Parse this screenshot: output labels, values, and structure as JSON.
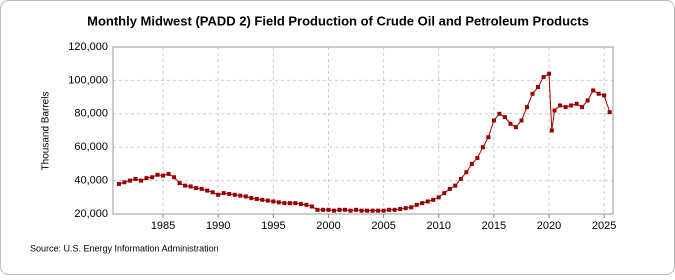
{
  "chart_data": {
    "type": "line",
    "title": "Monthly Midwest (PADD 2) Field Production of Crude Oil and Petroleum Products",
    "y_label": "Thousand Barrels",
    "source": "Source: U.S. Energy Information Administration",
    "x": [
      1981,
      1981.5,
      1982,
      1982.5,
      1983,
      1983.5,
      1984,
      1984.5,
      1985,
      1985.5,
      1986,
      1986.5,
      1987,
      1987.5,
      1988,
      1988.5,
      1989,
      1989.5,
      1990,
      1990.5,
      1991,
      1991.5,
      1992,
      1992.5,
      1993,
      1993.5,
      1994,
      1994.5,
      1995,
      1995.5,
      1996,
      1996.5,
      1997,
      1997.5,
      1998,
      1998.5,
      1999,
      1999.5,
      2000,
      2000.5,
      2001,
      2001.5,
      2002,
      2002.5,
      2003,
      2003.5,
      2004,
      2004.5,
      2005,
      2005.5,
      2006,
      2006.5,
      2007,
      2007.5,
      2008,
      2008.5,
      2009,
      2009.5,
      2010,
      2010.5,
      2011,
      2011.5,
      2012,
      2012.5,
      2013,
      2013.5,
      2014,
      2014.5,
      2015,
      2015.5,
      2016,
      2016.5,
      2017,
      2017.5,
      2018,
      2018.5,
      2019,
      2019.5,
      2020,
      2020.25,
      2020.5,
      2021,
      2021.5,
      2022,
      2022.5,
      2023,
      2023.5,
      2024,
      2024.5,
      2025,
      2025.5
    ],
    "series": [
      {
        "name": "Field Production",
        "color": "#990000",
        "values": [
          38000,
          39000,
          40000,
          41000,
          40000,
          41500,
          42000,
          43500,
          43000,
          44000,
          42000,
          38500,
          37000,
          36500,
          35500,
          35000,
          34000,
          33000,
          31500,
          32500,
          32000,
          31500,
          31000,
          30500,
          29500,
          29000,
          28500,
          28000,
          27500,
          27000,
          26500,
          26500,
          26500,
          26000,
          25500,
          24500,
          22500,
          22500,
          22500,
          22000,
          22500,
          22500,
          22000,
          22500,
          22000,
          22000,
          22000,
          22000,
          22000,
          22500,
          22500,
          23000,
          23500,
          24000,
          25500,
          26500,
          27500,
          28500,
          30000,
          32500,
          35000,
          37000,
          41000,
          45000,
          50000,
          53500,
          60000,
          66000,
          76000,
          80000,
          78000,
          74000,
          72000,
          76000,
          84000,
          92000,
          96000,
          102000,
          104000,
          70000,
          82000,
          85000,
          84000,
          85000,
          86000,
          84000,
          88000,
          94000,
          92000,
          91000,
          81000
        ]
      }
    ],
    "xlim": [
      1980.46,
      2025.8
    ],
    "xticks": [
      1985,
      1990,
      1995,
      2000,
      2005,
      2010,
      2015,
      2020,
      2025
    ],
    "ylim": [
      20000,
      120000
    ],
    "yticks": [
      {
        "value": 20000,
        "label": "20,000"
      },
      {
        "value": 40000,
        "label": "40,000"
      },
      {
        "value": 60000,
        "label": "60,000"
      },
      {
        "value": 80000,
        "label": "80,000"
      },
      {
        "value": 100000,
        "label": "100,000"
      },
      {
        "value": 120000,
        "label": "120,000"
      }
    ],
    "grid": true
  }
}
